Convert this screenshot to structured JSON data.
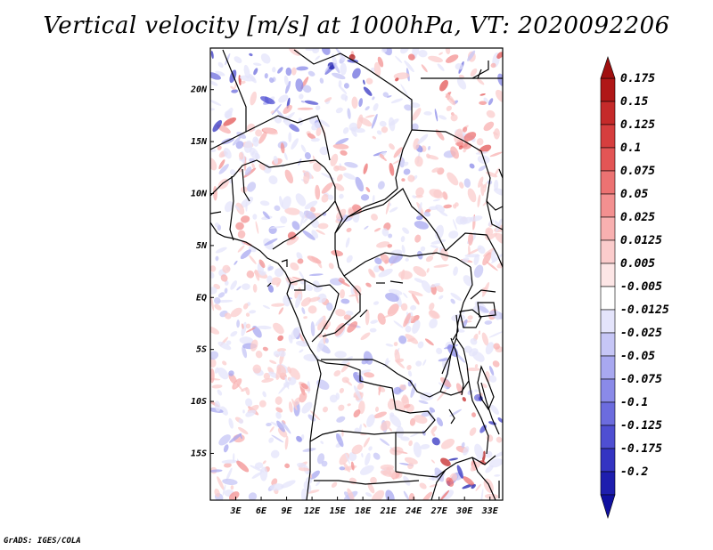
{
  "title": "Vertical velocity [m/s] at 1000hPa, VT: 2020092206",
  "footer": "GrADS: IGES/COLA",
  "map": {
    "lon_range": [
      0,
      34.5
    ],
    "lat_range": [
      -19.5,
      24
    ],
    "lon_ticks": [
      {
        "value": 3,
        "label": "3E"
      },
      {
        "value": 6,
        "label": "6E"
      },
      {
        "value": 9,
        "label": "9E"
      },
      {
        "value": 12,
        "label": "12E"
      },
      {
        "value": 15,
        "label": "15E"
      },
      {
        "value": 18,
        "label": "18E"
      },
      {
        "value": 21,
        "label": "21E"
      },
      {
        "value": 24,
        "label": "24E"
      },
      {
        "value": 27,
        "label": "27E"
      },
      {
        "value": 30,
        "label": "30E"
      },
      {
        "value": 33,
        "label": "33E"
      }
    ],
    "lat_ticks": [
      {
        "value": 20,
        "label": "20N"
      },
      {
        "value": 15,
        "label": "15N"
      },
      {
        "value": 10,
        "label": "10N"
      },
      {
        "value": 5,
        "label": "5N"
      },
      {
        "value": 0,
        "label": "EQ"
      },
      {
        "value": -5,
        "label": "5S"
      },
      {
        "value": -10,
        "label": "10S"
      },
      {
        "value": -15,
        "label": "15S"
      }
    ]
  },
  "colorbar": {
    "levels": [
      {
        "label": "0.175",
        "color": "#b01818"
      },
      {
        "label": "0.15",
        "color": "#c52a2a"
      },
      {
        "label": "0.125",
        "color": "#d63e3e"
      },
      {
        "label": "0.1",
        "color": "#e35555"
      },
      {
        "label": "0.075",
        "color": "#ec7272"
      },
      {
        "label": "0.05",
        "color": "#f39090"
      },
      {
        "label": "0.025",
        "color": "#f8b0b0"
      },
      {
        "label": "0.0125",
        "color": "#fbcccc"
      },
      {
        "label": "0.005",
        "color": "#fde6e6"
      },
      {
        "label": "-0.005",
        "color": "#ffffff"
      },
      {
        "label": "-0.0125",
        "color": "#e4e4fb"
      },
      {
        "label": "-0.025",
        "color": "#c6c6f6"
      },
      {
        "label": "-0.05",
        "color": "#a8a8f0"
      },
      {
        "label": "-0.075",
        "color": "#8a8ae8"
      },
      {
        "label": "-0.1",
        "color": "#6c6cde"
      },
      {
        "label": "-0.125",
        "color": "#4f4fd2"
      },
      {
        "label": "-0.175",
        "color": "#3434c2"
      },
      {
        "label": "-0.2",
        "color": "#1e1eae"
      }
    ],
    "bottom_arrow_color": "#1010a0",
    "top_arrow_color": "#a01010"
  }
}
